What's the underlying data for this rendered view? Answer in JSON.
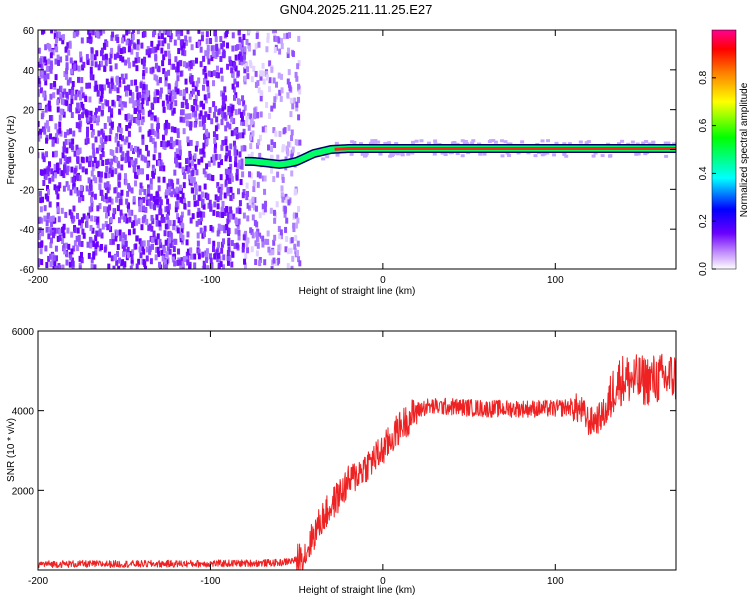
{
  "title": "GN04.2025.211.11.25.E27",
  "chart_data": [
    {
      "type": "heatmap",
      "xlabel": "Height of straight line (km)",
      "ylabel": "Frequency (Hz)",
      "xlim": [
        -200,
        170
      ],
      "ylim": [
        -60,
        60
      ],
      "xticks": [
        -200,
        -100,
        0,
        100
      ],
      "yticks": [
        -60,
        -40,
        -20,
        0,
        20,
        40,
        60
      ],
      "grid": false,
      "noise_region": {
        "x_from": -200,
        "x_to": -48,
        "dense_until": -80
      },
      "tone": {
        "x": [
          -80,
          -75,
          -70,
          -65,
          -60,
          -55,
          -50,
          -45,
          -40,
          -35,
          -30,
          -20,
          0,
          50,
          100,
          150,
          170
        ],
        "y": [
          -6,
          -6,
          -6.5,
          -7,
          -7.5,
          -7,
          -6,
          -4,
          -2,
          -1,
          0,
          0.5,
          0.5,
          0.5,
          0.5,
          0.5,
          0.5
        ]
      },
      "colorbar": {
        "label": "Normalized spectral amplitude",
        "range": [
          0.0,
          1.0
        ],
        "ticks": [
          "0.0",
          "0.2",
          "0.4",
          "0.6",
          "0.8"
        ],
        "tick_values": [
          0,
          0.2,
          0.4,
          0.6,
          0.8
        ],
        "colors": [
          "#ffffff",
          "#b77bff",
          "#6a00ff",
          "#0000ff",
          "#00ffff",
          "#00ff00",
          "#ffff00",
          "#ff8000",
          "#ff0000",
          "#ff0090"
        ]
      }
    },
    {
      "type": "line",
      "xlabel": "Height of straight line (km)",
      "ylabel": "SNR (10 * v/v)",
      "xlim": [
        -200,
        170
      ],
      "ylim": [
        0,
        6000
      ],
      "xticks": [
        -200,
        -100,
        0,
        100
      ],
      "yticks": [
        2000,
        4000,
        6000
      ],
      "series": [
        {
          "color": "#ee2222",
          "x": [
            -200,
            -150,
            -100,
            -60,
            -50,
            -45,
            -40,
            -35,
            -30,
            -25,
            -20,
            -15,
            -10,
            -5,
            0,
            5,
            10,
            15,
            20,
            25,
            30,
            40,
            60,
            80,
            100,
            110,
            115,
            120,
            125,
            130,
            135,
            140,
            150,
            160,
            170
          ],
          "y": [
            150,
            150,
            160,
            180,
            250,
            400,
            900,
            1300,
            1600,
            1900,
            2200,
            2400,
            2600,
            2800,
            3000,
            3300,
            3600,
            3800,
            4000,
            4100,
            4100,
            4100,
            4050,
            4050,
            4050,
            4100,
            4000,
            3700,
            3800,
            4000,
            4700,
            4800,
            4750,
            4800,
            4850
          ]
        }
      ]
    }
  ]
}
